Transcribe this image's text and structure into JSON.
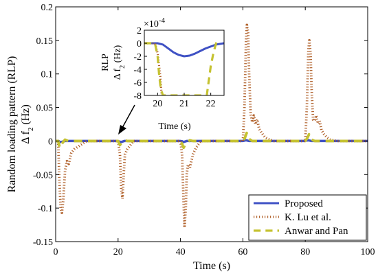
{
  "chart_data": [
    {
      "type": "line",
      "title": "",
      "xlabel": "Time (s)",
      "ylabel_line1": "Random loading pattern (RLP)",
      "ylabel_line2_prefix": "Δ f",
      "ylabel_line2_sub": "2",
      "ylabel_line2_suffix": " (Hz)",
      "xlim": [
        0,
        100
      ],
      "ylim": [
        -0.15,
        0.2
      ],
      "x_ticks": [
        "0",
        "20",
        "40",
        "60",
        "80",
        "100"
      ],
      "y_ticks": [
        "-0.15",
        "-0.1",
        "-0.05",
        "0",
        "0.05",
        "0.1",
        "0.15",
        "0.2"
      ],
      "grid": false,
      "legend_position": "bottom-right",
      "series": [
        {
          "name": "Proposed",
          "color": "#3f51c4",
          "style": "solid",
          "x": [
            0,
            1,
            1.2,
            2,
            3,
            19.5,
            20,
            21,
            22,
            40,
            40.5,
            41,
            42,
            60,
            61,
            62,
            79.5,
            80,
            81,
            82,
            100
          ],
          "y": [
            0,
            0,
            -0.0015,
            -0.0012,
            0,
            0,
            -0.0003,
            -0.0015,
            0,
            0,
            -0.0003,
            -0.0015,
            0,
            0,
            0.0012,
            0,
            0,
            0.0005,
            0.001,
            0,
            0
          ]
        },
        {
          "name": "K. Lu et al.",
          "color": "#b0602a",
          "style": "dotted",
          "x": [
            0,
            0.8,
            1.2,
            1.6,
            2.0,
            2.4,
            3.0,
            3.6,
            4.2,
            5.0,
            6.0,
            8.0,
            10.0,
            20.0,
            20.6,
            21.0,
            21.4,
            21.8,
            22.2,
            23.0,
            24.0,
            25.0,
            40.0,
            40.5,
            41.0,
            41.3,
            41.7,
            42.0,
            42.4,
            43.0,
            44.0,
            45.0,
            46.5,
            60.0,
            60.5,
            61.0,
            61.3,
            61.7,
            62.0,
            62.5,
            63.0,
            63.5,
            64.0,
            64.6,
            65.2,
            66.0,
            67.0,
            68.0,
            70.0,
            80.0,
            80.5,
            81.0,
            81.3,
            81.7,
            82.0,
            82.5,
            83.0,
            83.5,
            84.0,
            84.6,
            85.2,
            86.0,
            87.0,
            88.0,
            90.0,
            100.0
          ],
          "y": [
            0,
            0,
            -0.06,
            -0.1,
            -0.107,
            -0.09,
            -0.045,
            -0.03,
            -0.034,
            -0.018,
            -0.012,
            -0.006,
            0,
            0,
            -0.02,
            -0.07,
            -0.086,
            -0.05,
            -0.02,
            -0.012,
            -0.006,
            0,
            0,
            -0.02,
            -0.09,
            -0.129,
            -0.1,
            -0.05,
            -0.035,
            -0.04,
            -0.02,
            -0.01,
            0,
            0,
            0.05,
            0.15,
            0.173,
            0.16,
            0.1,
            0.04,
            0.028,
            0.038,
            0.025,
            0.032,
            0.018,
            0.012,
            0.006,
            0.003,
            0,
            0,
            0.05,
            0.135,
            0.15,
            0.13,
            0.08,
            0.032,
            0.03,
            0.038,
            0.026,
            0.03,
            0.016,
            0.01,
            0.005,
            0.002,
            0,
            0
          ]
        },
        {
          "name": "Anwar and Pan",
          "color": "#c5c231",
          "style": "dashed",
          "x": [
            0,
            0.8,
            1.3,
            2.0,
            3.0,
            3.5,
            4.0,
            20.0,
            20.6,
            21.2,
            22.0,
            23.0,
            40.0,
            40.5,
            41.0,
            41.8,
            43.0,
            44.0,
            60.0,
            60.6,
            61.2,
            62.0,
            63.0,
            80.0,
            80.6,
            81.2,
            82.0,
            83.0,
            100.0
          ],
          "y": [
            0,
            0,
            -0.01,
            -0.004,
            0.002,
            0.001,
            0,
            0,
            -0.006,
            -0.002,
            0.001,
            0,
            0,
            -0.004,
            -0.01,
            -0.003,
            0.001,
            0,
            0,
            0.004,
            0.012,
            0.003,
            0,
            0,
            0.004,
            0.01,
            0.002,
            0,
            0
          ]
        }
      ]
    },
    {
      "type": "line",
      "title_line1": "RLP",
      "title_line2_prefix": "Δ f",
      "title_line2_sub": "2",
      "title_line2_suffix": " (Hz)",
      "xlabel": "Time (s)",
      "scale_label": "×10",
      "scale_exp": "-4",
      "xlim": [
        19.5,
        22.5
      ],
      "ylim": [
        -8,
        2
      ],
      "x_ticks": [
        "20",
        "21",
        "22"
      ],
      "y_ticks": [
        "2",
        "0",
        "-2",
        "-4",
        "-6",
        "-8"
      ],
      "series": [
        {
          "name": "Proposed",
          "color": "#3f51c4",
          "style": "solid",
          "x": [
            19.5,
            20.0,
            20.2,
            20.4,
            20.6,
            20.8,
            21.0,
            21.2,
            21.4,
            21.6,
            21.8,
            22.0,
            22.2,
            22.5
          ],
          "y": [
            0,
            0,
            -0.2,
            -0.8,
            -1.4,
            -1.8,
            -2.0,
            -1.9,
            -1.6,
            -1.2,
            -0.8,
            -0.5,
            -0.2,
            0
          ]
        },
        {
          "name": "K. Lu et al.",
          "color": "#b0602a",
          "style": "dotted",
          "x": [
            19.5,
            19.9,
            20.0,
            20.1,
            20.15
          ],
          "y": [
            0,
            0,
            -1.5,
            -5.0,
            -8.0
          ]
        },
        {
          "name": "Anwar and Pan",
          "color": "#c5c231",
          "style": "dashed",
          "x": [
            19.5,
            19.9,
            20.0,
            20.06,
            20.12,
            20.2,
            21.85,
            21.9,
            22.0,
            22.1,
            22.2,
            22.3
          ],
          "y": [
            0,
            0,
            -2.0,
            -5.0,
            -7.0,
            -8.0,
            -8.0,
            -6.5,
            -3.5,
            -1.5,
            0,
            0.6
          ]
        }
      ]
    }
  ],
  "annotation_arrow": {
    "target_x": 20,
    "target_y": 0
  }
}
